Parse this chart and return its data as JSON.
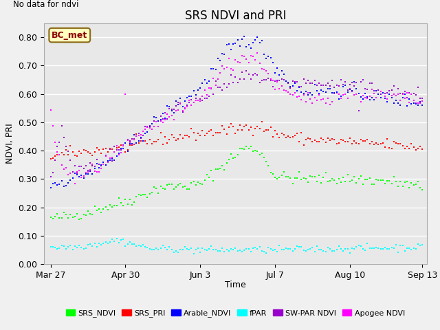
{
  "title": "SRS NDVI and PRI",
  "no_data_text": "No data for ndvi",
  "ylabel": "NDVI, PRI",
  "xlabel": "Time",
  "ylim": [
    0.0,
    0.85
  ],
  "yticks": [
    0.0,
    0.1,
    0.2,
    0.3,
    0.4,
    0.5,
    0.6,
    0.7,
    0.8
  ],
  "bg_color": "#e8e8e8",
  "fig_color": "#f0f0f0",
  "bc_met_label": "BC_met",
  "bc_met_box_color": "#ffffc0",
  "bc_met_border_color": "#8b6914",
  "legend_entries": [
    {
      "label": "SRS_NDVI",
      "color": "#00ff00"
    },
    {
      "label": "SRS_PRI",
      "color": "#ff0000"
    },
    {
      "label": "Arable_NDVI",
      "color": "#0000ff"
    },
    {
      "label": "fPAR",
      "color": "#00ffff"
    },
    {
      "label": "SW-PAR NDVI",
      "color": "#9900cc"
    },
    {
      "label": "Apogee NDVI",
      "color": "#ff00ff"
    }
  ],
  "xtick_labels": [
    "Mar 27",
    "Apr 30",
    "Jun 3",
    "Jul 7",
    "Aug 10",
    "Sep 13"
  ],
  "xtick_positions": [
    0,
    34,
    68,
    102,
    136,
    169
  ],
  "series_colors": {
    "srs_ndvi": "#00ff00",
    "srs_pri": "#ff0000",
    "arable_ndvi": "#0000ff",
    "fpar": "#00ffff",
    "swpar_ndvi": "#9900cc",
    "apogee_ndvi": "#ff00ff"
  },
  "marker_size": 3.5
}
